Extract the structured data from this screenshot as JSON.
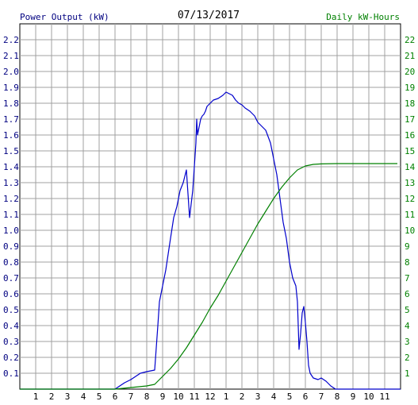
{
  "chart_data": {
    "type": "line",
    "title": "07/13/2017",
    "left_axis_label": "Power Output (kW)",
    "right_axis_label": "Daily kW-Hours",
    "left_ylim": [
      0,
      2.3
    ],
    "right_ylim": [
      0,
      23
    ],
    "left_ticks": [
      "0.1",
      "0.2",
      "0.3",
      "0.4",
      "0.5",
      "0.6",
      "0.7",
      "0.8",
      "0.9",
      "1.0",
      "1.1",
      "1.2",
      "1.3",
      "1.4",
      "1.5",
      "1.6",
      "1.7",
      "1.8",
      "1.9",
      "2.0",
      "2.1",
      "2.2"
    ],
    "right_ticks": [
      "1",
      "2",
      "3",
      "4",
      "5",
      "6",
      "7",
      "8",
      "9",
      "10",
      "11",
      "12",
      "13",
      "14",
      "15",
      "16",
      "17",
      "18",
      "19",
      "20",
      "21",
      "22"
    ],
    "x_ticks": [
      "1",
      "2",
      "3",
      "4",
      "5",
      "6",
      "7",
      "8",
      "9",
      "10",
      "11",
      "12",
      "1",
      "2",
      "3",
      "4",
      "5",
      "6",
      "7",
      "8",
      "9",
      "10",
      "11"
    ],
    "xlim": [
      0,
      24
    ],
    "grid": true,
    "colors": {
      "power": "#0000cc",
      "energy": "#008000",
      "left_label": "#000080",
      "right_label": "#008000",
      "grid": "#a0a0a0"
    },
    "series": [
      {
        "axis": "left",
        "x": [
          0,
          6.0,
          6.3,
          6.6,
          7.0,
          7.3,
          7.6,
          8.0,
          8.5,
          8.7,
          8.8,
          9.0,
          9.2,
          9.5,
          9.7,
          9.9,
          10.1,
          10.3,
          10.5,
          10.7,
          10.9,
          11.1,
          11.15,
          11.2,
          11.3,
          11.4,
          11.5,
          11.6,
          11.7,
          11.8,
          12.0,
          12.2,
          12.5,
          12.8,
          13.0,
          13.2,
          13.4,
          13.6,
          13.8,
          14.0,
          14.2,
          14.5,
          14.8,
          15.0,
          15.2,
          15.5,
          15.8,
          16.0,
          16.2,
          16.4,
          16.6,
          16.8,
          17.0,
          17.2,
          17.4,
          17.5,
          17.6,
          17.7,
          17.8,
          17.9,
          18.0,
          18.1,
          18.2,
          18.3,
          18.5,
          18.8,
          19.0,
          19.3,
          19.6,
          19.9,
          20.1,
          20.3,
          20.5,
          21.0,
          24
        ],
        "y": [
          0,
          0,
          0.02,
          0.04,
          0.06,
          0.08,
          0.1,
          0.11,
          0.12,
          0.4,
          0.55,
          0.65,
          0.75,
          0.95,
          1.08,
          1.15,
          1.25,
          1.3,
          1.38,
          1.08,
          1.25,
          1.55,
          1.7,
          1.6,
          1.65,
          1.7,
          1.72,
          1.73,
          1.75,
          1.78,
          1.8,
          1.82,
          1.83,
          1.85,
          1.87,
          1.86,
          1.85,
          1.82,
          1.8,
          1.79,
          1.77,
          1.75,
          1.72,
          1.68,
          1.66,
          1.63,
          1.55,
          1.45,
          1.35,
          1.2,
          1.05,
          0.95,
          0.8,
          0.7,
          0.65,
          0.55,
          0.25,
          0.35,
          0.48,
          0.52,
          0.42,
          0.3,
          0.15,
          0.1,
          0.07,
          0.06,
          0.07,
          0.05,
          0.02,
          0,
          0,
          0,
          0,
          0,
          0
        ]
      },
      {
        "axis": "right",
        "x": [
          0,
          6.0,
          7.0,
          8.0,
          8.5,
          9.0,
          9.5,
          10.0,
          10.5,
          11.0,
          11.5,
          12.0,
          12.5,
          13.0,
          13.5,
          14.0,
          14.5,
          15.0,
          15.5,
          16.0,
          16.5,
          17.0,
          17.5,
          18.0,
          18.5,
          19.0,
          20.0,
          21.0,
          22.0,
          23.0,
          23.8
        ],
        "y": [
          0,
          0,
          0.1,
          0.2,
          0.3,
          0.8,
          1.3,
          1.9,
          2.6,
          3.4,
          4.2,
          5.1,
          5.9,
          6.8,
          7.7,
          8.6,
          9.5,
          10.4,
          11.2,
          12.0,
          12.7,
          13.3,
          13.8,
          14.05,
          14.15,
          14.18,
          14.2,
          14.2,
          14.2,
          14.2,
          14.2
        ]
      }
    ]
  }
}
